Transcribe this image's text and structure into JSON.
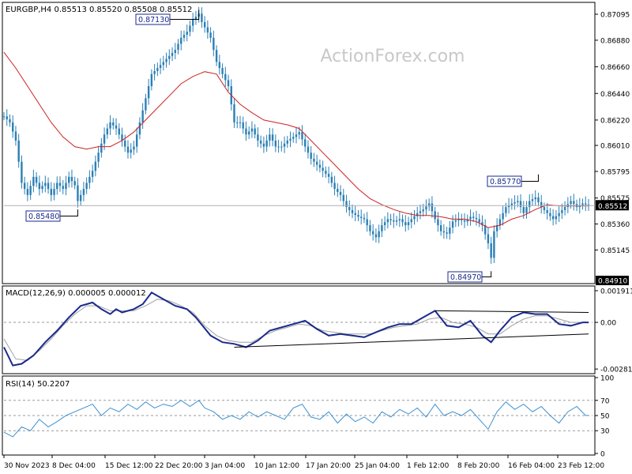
{
  "watermark": "ActionForex.com",
  "colors": {
    "background": "#ffffff",
    "candle": "#2b7fb5",
    "ma": "#cc2222",
    "macd": "#1a2a8c",
    "macd_signal": "#a0a0a0",
    "rsi": "#3a8fd0",
    "level_box_text": "#1a2a8c",
    "trendline": "#000000"
  },
  "chart_data": [
    {
      "panel": "price",
      "type": "candlestick",
      "title": "EURGBP,H4  0.85513 0.85520 0.85508 0.85512",
      "symbol": "EURGBP",
      "timeframe": "H4",
      "ohlc_last": {
        "open": 0.85513,
        "high": 0.8552,
        "low": 0.85508,
        "close": 0.85512
      },
      "ylim": [
        0.8488,
        0.8718
      ],
      "y_ticks": [
        "0.87095",
        "0.86880",
        "0.86660",
        "0.86440",
        "0.86220",
        "0.86010",
        "0.85795",
        "0.85575",
        "0.85360",
        "0.85145"
      ],
      "x_ticks": [
        "30 Nov 2023",
        "8 Dec 04:00",
        "15 Dec 12:00",
        "22 Dec 20:00",
        "3 Jan 04:00",
        "10 Jan 12:00",
        "17 Jan 20:00",
        "25 Jan 04:00",
        "1 Feb 12:00",
        "8 Feb 20:00",
        "16 Feb 04:00",
        "23 Feb 12:00"
      ],
      "current_price": "0.85512",
      "low_marker": "0.84910",
      "annotations": [
        "0.87130",
        "0.85480",
        "0.85770",
        "0.84970"
      ],
      "close_path": [
        [
          0,
          0.8625
        ],
        [
          2,
          0.862
        ],
        [
          4,
          0.8605
        ],
        [
          6,
          0.857
        ],
        [
          8,
          0.856
        ],
        [
          10,
          0.8575
        ],
        [
          12,
          0.8565
        ],
        [
          14,
          0.857
        ],
        [
          16,
          0.856
        ],
        [
          18,
          0.857
        ],
        [
          20,
          0.8565
        ],
        [
          22,
          0.8575
        ],
        [
          24,
          0.8568
        ],
        [
          25,
          0.8555
        ],
        [
          28,
          0.857
        ],
        [
          30,
          0.858
        ],
        [
          32,
          0.8595
        ],
        [
          34,
          0.861
        ],
        [
          36,
          0.862
        ],
        [
          38,
          0.8615
        ],
        [
          40,
          0.8605
        ],
        [
          42,
          0.8595
        ],
        [
          44,
          0.86
        ],
        [
          46,
          0.862
        ],
        [
          48,
          0.864
        ],
        [
          50,
          0.866
        ],
        [
          52,
          0.8665
        ],
        [
          54,
          0.867
        ],
        [
          56,
          0.8675
        ],
        [
          58,
          0.868
        ],
        [
          60,
          0.869
        ],
        [
          62,
          0.8695
        ],
        [
          64,
          0.8705
        ],
        [
          66,
          0.871
        ],
        [
          67,
          0.8703
        ],
        [
          70,
          0.869
        ],
        [
          72,
          0.867
        ],
        [
          74,
          0.866
        ],
        [
          76,
          0.865
        ],
        [
          78,
          0.862
        ],
        [
          80,
          0.862
        ],
        [
          82,
          0.861
        ],
        [
          84,
          0.8615
        ],
        [
          86,
          0.8605
        ],
        [
          88,
          0.86
        ],
        [
          90,
          0.861
        ],
        [
          92,
          0.86
        ],
        [
          94,
          0.86
        ],
        [
          96,
          0.8605
        ],
        [
          98,
          0.8608
        ],
        [
          100,
          0.8612
        ],
        [
          102,
          0.86
        ],
        [
          104,
          0.859
        ],
        [
          106,
          0.8585
        ],
        [
          108,
          0.858
        ],
        [
          110,
          0.8575
        ],
        [
          112,
          0.8565
        ],
        [
          114,
          0.856
        ],
        [
          116,
          0.855
        ],
        [
          118,
          0.8545
        ],
        [
          120,
          0.8542
        ],
        [
          122,
          0.854
        ],
        [
          124,
          0.853
        ],
        [
          126,
          0.8525
        ],
        [
          128,
          0.8535
        ],
        [
          130,
          0.854
        ],
        [
          132,
          0.8538
        ],
        [
          134,
          0.854
        ],
        [
          136,
          0.8535
        ],
        [
          138,
          0.854
        ],
        [
          140,
          0.8545
        ],
        [
          142,
          0.8548
        ],
        [
          144,
          0.8553
        ],
        [
          146,
          0.854
        ],
        [
          148,
          0.853
        ],
        [
          150,
          0.8528
        ],
        [
          152,
          0.8538
        ],
        [
          154,
          0.854
        ],
        [
          156,
          0.8538
        ],
        [
          158,
          0.8542
        ],
        [
          160,
          0.854
        ],
        [
          162,
          0.8535
        ],
        [
          164,
          0.852
        ],
        [
          165,
          0.8508
        ],
        [
          166,
          0.853
        ],
        [
          168,
          0.854
        ],
        [
          170,
          0.855
        ],
        [
          172,
          0.8553
        ],
        [
          174,
          0.8555
        ],
        [
          176,
          0.8545
        ],
        [
          178,
          0.8555
        ],
        [
          180,
          0.8558
        ],
        [
          182,
          0.855
        ],
        [
          184,
          0.8545
        ],
        [
          186,
          0.854
        ],
        [
          188,
          0.8545
        ],
        [
          190,
          0.855
        ],
        [
          192,
          0.8555
        ],
        [
          194,
          0.855
        ],
        [
          196,
          0.8553
        ],
        [
          198,
          0.8551
        ]
      ],
      "ma_path": [
        [
          0,
          0.8678
        ],
        [
          4,
          0.8665
        ],
        [
          8,
          0.865
        ],
        [
          12,
          0.8635
        ],
        [
          16,
          0.862
        ],
        [
          20,
          0.8608
        ],
        [
          24,
          0.86
        ],
        [
          28,
          0.8598
        ],
        [
          32,
          0.86
        ],
        [
          36,
          0.86
        ],
        [
          40,
          0.8605
        ],
        [
          44,
          0.8612
        ],
        [
          48,
          0.8622
        ],
        [
          52,
          0.8632
        ],
        [
          56,
          0.8642
        ],
        [
          60,
          0.8652
        ],
        [
          64,
          0.8658
        ],
        [
          68,
          0.8662
        ],
        [
          72,
          0.866
        ],
        [
          76,
          0.8645
        ],
        [
          80,
          0.8635
        ],
        [
          84,
          0.8628
        ],
        [
          88,
          0.8622
        ],
        [
          92,
          0.862
        ],
        [
          96,
          0.8618
        ],
        [
          100,
          0.8615
        ],
        [
          104,
          0.8605
        ],
        [
          108,
          0.8595
        ],
        [
          112,
          0.8585
        ],
        [
          116,
          0.8575
        ],
        [
          120,
          0.8565
        ],
        [
          124,
          0.8557
        ],
        [
          128,
          0.8552
        ],
        [
          132,
          0.8548
        ],
        [
          136,
          0.8545
        ],
        [
          140,
          0.8543
        ],
        [
          144,
          0.8543
        ],
        [
          148,
          0.8542
        ],
        [
          152,
          0.854
        ],
        [
          156,
          0.854
        ],
        [
          160,
          0.8538
        ],
        [
          164,
          0.8533
        ],
        [
          168,
          0.8535
        ],
        [
          172,
          0.854
        ],
        [
          176,
          0.8543
        ],
        [
          180,
          0.8548
        ],
        [
          184,
          0.8552
        ],
        [
          188,
          0.8551
        ],
        [
          192,
          0.8551
        ],
        [
          198,
          0.8551
        ]
      ]
    },
    {
      "panel": "macd",
      "type": "line",
      "title": "MACD(12,26,9) 0.000005 0.000012",
      "params": "12,26,9",
      "values_last": {
        "macd": 5e-06,
        "signal": 1.2e-05
      },
      "ylim": [
        -0.003,
        0.0021
      ],
      "y_ticks": [
        "0.001911",
        "0.00",
        "-0.002816"
      ],
      "macd_path": [
        [
          0,
          -0.0015
        ],
        [
          3,
          -0.0026
        ],
        [
          6,
          -0.0025
        ],
        [
          10,
          -0.002
        ],
        [
          14,
          -0.0012
        ],
        [
          18,
          -0.0005
        ],
        [
          22,
          0.0003
        ],
        [
          26,
          0.001
        ],
        [
          30,
          0.0012
        ],
        [
          33,
          0.0008
        ],
        [
          36,
          0.0005
        ],
        [
          38,
          0.0008
        ],
        [
          40,
          0.0006
        ],
        [
          44,
          0.0008
        ],
        [
          47,
          0.0011
        ],
        [
          50,
          0.0018
        ],
        [
          54,
          0.0014
        ],
        [
          58,
          0.001
        ],
        [
          62,
          0.0008
        ],
        [
          65,
          0.0003
        ],
        [
          70,
          -0.0008
        ],
        [
          74,
          -0.0012
        ],
        [
          78,
          -0.0013
        ],
        [
          82,
          -0.0015
        ],
        [
          86,
          -0.0011
        ],
        [
          90,
          -0.0005
        ],
        [
          94,
          -0.0003
        ],
        [
          98,
          -0.0001
        ],
        [
          102,
          0.0001
        ],
        [
          106,
          -0.0004
        ],
        [
          110,
          -0.0008
        ],
        [
          114,
          -0.0007
        ],
        [
          118,
          -0.0008
        ],
        [
          122,
          -0.0009
        ],
        [
          126,
          -0.0006
        ],
        [
          130,
          -0.0003
        ],
        [
          134,
          -0.0001
        ],
        [
          138,
          -0.0001
        ],
        [
          142,
          0.0003
        ],
        [
          146,
          0.0007
        ],
        [
          150,
          -0.0002
        ],
        [
          154,
          -0.0003
        ],
        [
          158,
          0.0001
        ],
        [
          162,
          -0.0008
        ],
        [
          165,
          -0.0012
        ],
        [
          168,
          -0.0005
        ],
        [
          172,
          0.0003
        ],
        [
          176,
          0.0006
        ],
        [
          180,
          0.0005
        ],
        [
          184,
          0.0005
        ],
        [
          188,
          -0.0001
        ],
        [
          192,
          -0.0002
        ],
        [
          196,
          0.0
        ],
        [
          198,
          0.0
        ]
      ],
      "signal_path": [
        [
          0,
          -0.001
        ],
        [
          4,
          -0.0022
        ],
        [
          8,
          -0.0023
        ],
        [
          12,
          -0.0017
        ],
        [
          16,
          -0.001
        ],
        [
          20,
          -0.0002
        ],
        [
          24,
          0.0005
        ],
        [
          28,
          0.001
        ],
        [
          32,
          0.001
        ],
        [
          36,
          0.0007
        ],
        [
          40,
          0.0007
        ],
        [
          44,
          0.0007
        ],
        [
          48,
          0.001
        ],
        [
          52,
          0.0014
        ],
        [
          56,
          0.0013
        ],
        [
          60,
          0.001
        ],
        [
          64,
          0.0006
        ],
        [
          68,
          -0.0002
        ],
        [
          72,
          -0.0008
        ],
        [
          76,
          -0.0011
        ],
        [
          80,
          -0.0012
        ],
        [
          84,
          -0.0012
        ],
        [
          88,
          -0.0008
        ],
        [
          92,
          -0.0005
        ],
        [
          96,
          -0.0003
        ],
        [
          100,
          -0.0001
        ],
        [
          104,
          -0.0002
        ],
        [
          108,
          -0.0005
        ],
        [
          112,
          -0.0006
        ],
        [
          116,
          -0.0007
        ],
        [
          120,
          -0.0007
        ],
        [
          124,
          -0.0007
        ],
        [
          128,
          -0.0005
        ],
        [
          132,
          -0.0003
        ],
        [
          136,
          -0.0002
        ],
        [
          140,
          -0.0001
        ],
        [
          144,
          0.0002
        ],
        [
          148,
          0.0003
        ],
        [
          152,
          0.0
        ],
        [
          156,
          -0.0001
        ],
        [
          160,
          -0.0003
        ],
        [
          164,
          -0.0007
        ],
        [
          168,
          -0.0007
        ],
        [
          172,
          -0.0002
        ],
        [
          176,
          0.0002
        ],
        [
          180,
          0.0004
        ],
        [
          184,
          0.0004
        ],
        [
          188,
          0.0002
        ],
        [
          192,
          0.0
        ],
        [
          198,
          0.0
        ]
      ],
      "trendlines": [
        [
          [
            78,
            -0.0015
          ],
          [
            198,
            -0.0007
          ]
        ],
        [
          [
            146,
            0.0007
          ],
          [
            198,
            0.0006
          ]
        ]
      ]
    },
    {
      "panel": "rsi",
      "type": "line",
      "title": "RSI(14) 50.2207",
      "period": 14,
      "value_last": 50.2207,
      "ylim": [
        0,
        100
      ],
      "y_ticks": [
        "100",
        "70",
        "50",
        "30",
        "0"
      ],
      "levels": [
        70,
        50,
        30
      ],
      "rsi_path": [
        [
          0,
          28
        ],
        [
          3,
          22
        ],
        [
          6,
          35
        ],
        [
          9,
          30
        ],
        [
          12,
          45
        ],
        [
          15,
          35
        ],
        [
          18,
          42
        ],
        [
          21,
          50
        ],
        [
          24,
          55
        ],
        [
          27,
          60
        ],
        [
          30,
          65
        ],
        [
          33,
          50
        ],
        [
          36,
          60
        ],
        [
          39,
          55
        ],
        [
          42,
          65
        ],
        [
          45,
          58
        ],
        [
          48,
          68
        ],
        [
          51,
          60
        ],
        [
          54,
          65
        ],
        [
          57,
          62
        ],
        [
          60,
          70
        ],
        [
          63,
          62
        ],
        [
          66,
          70
        ],
        [
          68,
          60
        ],
        [
          71,
          55
        ],
        [
          74,
          45
        ],
        [
          77,
          50
        ],
        [
          80,
          45
        ],
        [
          83,
          55
        ],
        [
          86,
          48
        ],
        [
          89,
          55
        ],
        [
          92,
          50
        ],
        [
          95,
          45
        ],
        [
          98,
          60
        ],
        [
          101,
          65
        ],
        [
          104,
          48
        ],
        [
          107,
          45
        ],
        [
          110,
          55
        ],
        [
          113,
          40
        ],
        [
          116,
          52
        ],
        [
          119,
          42
        ],
        [
          122,
          48
        ],
        [
          125,
          40
        ],
        [
          128,
          55
        ],
        [
          131,
          48
        ],
        [
          134,
          58
        ],
        [
          137,
          52
        ],
        [
          140,
          60
        ],
        [
          143,
          48
        ],
        [
          146,
          65
        ],
        [
          149,
          50
        ],
        [
          152,
          55
        ],
        [
          155,
          50
        ],
        [
          158,
          58
        ],
        [
          161,
          45
        ],
        [
          164,
          32
        ],
        [
          167,
          55
        ],
        [
          170,
          68
        ],
        [
          173,
          58
        ],
        [
          176,
          65
        ],
        [
          179,
          55
        ],
        [
          182,
          62
        ],
        [
          185,
          50
        ],
        [
          188,
          40
        ],
        [
          191,
          55
        ],
        [
          194,
          62
        ],
        [
          197,
          50
        ],
        [
          198,
          50.2
        ]
      ]
    }
  ]
}
